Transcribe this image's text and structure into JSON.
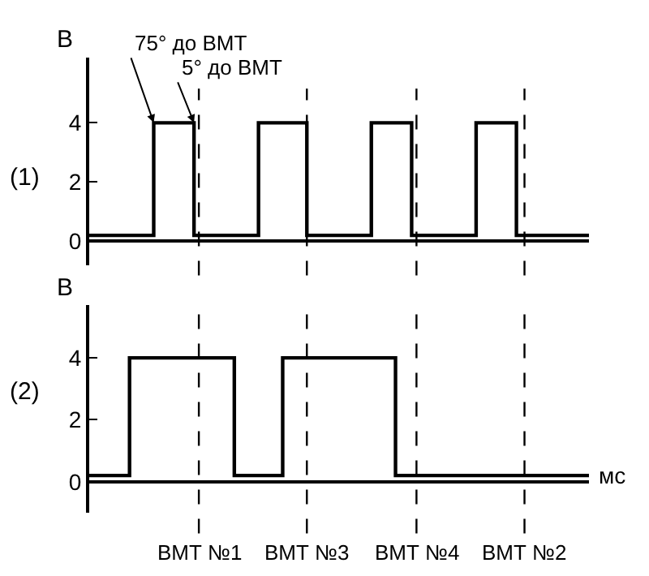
{
  "chart_data": [
    {
      "type": "step",
      "title": "(1)",
      "ylabel": "B",
      "categories": [
        null,
        null,
        null,
        null,
        null,
        null,
        null,
        null,
        null,
        null,
        null,
        null,
        null,
        null,
        null,
        null,
        null,
        null,
        null,
        null,
        null,
        null,
        null,
        null,
        null,
        null,
        null,
        null,
        null,
        null,
        null,
        null,
        null,
        null,
        null,
        null,
        null,
        null,
        null,
        null,
        null,
        null,
        null,
        null,
        null,
        null,
        null,
        null,
        null,
        null,
        null,
        null,
        null,
        null,
        null,
        null,
        null,
        null,
        null,
        null,
        null,
        null,
        null
      ],
      "series": [
        {
          "color": "#000000",
          "values": [
            0.2,
            0.2,
            0.2,
            0.2,
            0.2,
            0.2,
            0.2,
            0.2,
            4,
            4,
            4,
            4,
            4,
            0.2,
            0.2,
            0.2,
            0.2,
            0.2,
            0.2,
            0.2,
            0.2,
            4,
            4,
            4,
            4,
            4,
            4,
            0.2,
            0.2,
            0.2,
            0.2,
            0.2,
            0.2,
            0.2,
            0.2,
            4,
            4,
            4,
            4,
            4,
            0.2,
            0.2,
            0.2,
            0.2,
            0.2,
            0.2,
            0.2,
            0.2,
            4,
            4,
            4,
            4,
            4,
            0.2,
            0.2,
            0.2,
            0.2,
            0.2,
            0.2,
            0.2,
            0.2,
            0.2,
            0.2
          ]
        }
      ],
      "ylim": [
        -0.8,
        6.2
      ],
      "yticks": [
        0,
        2,
        4
      ],
      "tick_labels": "y",
      "line_style": "solid",
      "marker": "none",
      "annotations": [
        "75° до ВМТ",
        "5° до ВМТ"
      ]
    },
    {
      "type": "step",
      "title": "(2)",
      "ylabel": "B",
      "xlabel": "мс",
      "categories": [
        null,
        null,
        null,
        null,
        null,
        null,
        null,
        null,
        null,
        null,
        null,
        null,
        null,
        null,
        null,
        null,
        null,
        null,
        null,
        null,
        null,
        null,
        null,
        null,
        null,
        null,
        null,
        null,
        null,
        null,
        null,
        null,
        null,
        null,
        null,
        null,
        null,
        null,
        null,
        null,
        null,
        null,
        null,
        null,
        null,
        null,
        null,
        null,
        null,
        null,
        null,
        null,
        null,
        null,
        null,
        null,
        null,
        null,
        null,
        null,
        null,
        null,
        null
      ],
      "series": [
        {
          "color": "#000000",
          "values": [
            0.2,
            0.2,
            0.2,
            0.2,
            0.2,
            4,
            4,
            4,
            4,
            4,
            4,
            4,
            4,
            4,
            4,
            4,
            4,
            4,
            0.2,
            0.2,
            0.2,
            0.2,
            0.2,
            0.2,
            4,
            4,
            4,
            4,
            4,
            4,
            4,
            4,
            4,
            4,
            4,
            4,
            4,
            4,
            0.2,
            0.2,
            0.2,
            0.2,
            0.2,
            0.2,
            0.2,
            0.2,
            0.2,
            0.2,
            0.2,
            0.2,
            0.2,
            0.2,
            0.2,
            0.2,
            0.2,
            0.2,
            0.2,
            0.2,
            0.2,
            0.2,
            0.2,
            0.2,
            0.2
          ]
        }
      ],
      "ylim": [
        -1,
        5.7
      ],
      "yticks": [
        0,
        2,
        4
      ],
      "tick_labels": "y",
      "line_style": "solid",
      "marker": "none",
      "annotations": [
        "ВМТ №1",
        "ВМТ №3",
        "ВМТ №4",
        "ВМТ №2"
      ]
    }
  ]
}
